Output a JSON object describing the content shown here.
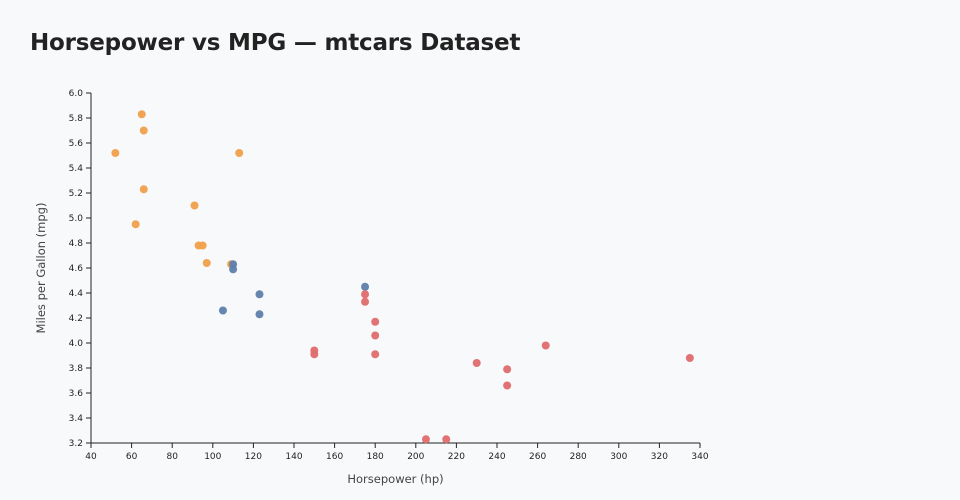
{
  "chart_data": {
    "type": "scatter",
    "title": "Horsepower vs MPG — mtcars Dataset",
    "xlabel": "Horsepower (hp)",
    "ylabel": "Miles per Gallon (mpg)",
    "xlim": [
      40,
      340
    ],
    "ylim": [
      3.2,
      6.0
    ],
    "xticks": [
      "40",
      "60",
      "80",
      "100",
      "120",
      "140",
      "160",
      "180",
      "200",
      "220",
      "240",
      "260",
      "280",
      "300",
      "320",
      "340"
    ],
    "yticks": [
      "3.2",
      "3.4",
      "3.6",
      "3.8",
      "4.0",
      "4.2",
      "4.4",
      "4.6",
      "4.8",
      "5.0",
      "5.2",
      "5.4",
      "5.6",
      "5.8",
      "6.0"
    ],
    "grid": false,
    "legend": "none",
    "series": [
      {
        "color": "#f0a04b",
        "points": [
          {
            "x": 52,
            "y": 5.52
          },
          {
            "x": 62,
            "y": 4.95
          },
          {
            "x": 65,
            "y": 5.83
          },
          {
            "x": 66,
            "y": 5.7
          },
          {
            "x": 66,
            "y": 5.23
          },
          {
            "x": 91,
            "y": 5.1
          },
          {
            "x": 93,
            "y": 4.78
          },
          {
            "x": 95,
            "y": 4.78
          },
          {
            "x": 97,
            "y": 4.64
          },
          {
            "x": 109,
            "y": 4.63
          },
          {
            "x": 113,
            "y": 5.52
          }
        ]
      },
      {
        "color": "#5f7fab",
        "points": [
          {
            "x": 105,
            "y": 4.26
          },
          {
            "x": 110,
            "y": 4.63
          },
          {
            "x": 110,
            "y": 4.59
          },
          {
            "x": 123,
            "y": 4.39
          },
          {
            "x": 123,
            "y": 4.23
          },
          {
            "x": 175,
            "y": 4.45
          }
        ]
      },
      {
        "color": "#e06c6e",
        "points": [
          {
            "x": 150,
            "y": 3.94
          },
          {
            "x": 150,
            "y": 3.91
          },
          {
            "x": 175,
            "y": 4.39
          },
          {
            "x": 175,
            "y": 4.33
          },
          {
            "x": 180,
            "y": 4.17
          },
          {
            "x": 180,
            "y": 4.06
          },
          {
            "x": 180,
            "y": 3.91
          },
          {
            "x": 205,
            "y": 3.23
          },
          {
            "x": 215,
            "y": 3.23
          },
          {
            "x": 230,
            "y": 3.84
          },
          {
            "x": 245,
            "y": 3.79
          },
          {
            "x": 245,
            "y": 3.66
          },
          {
            "x": 264,
            "y": 3.98
          },
          {
            "x": 335,
            "y": 3.88
          }
        ]
      }
    ]
  }
}
